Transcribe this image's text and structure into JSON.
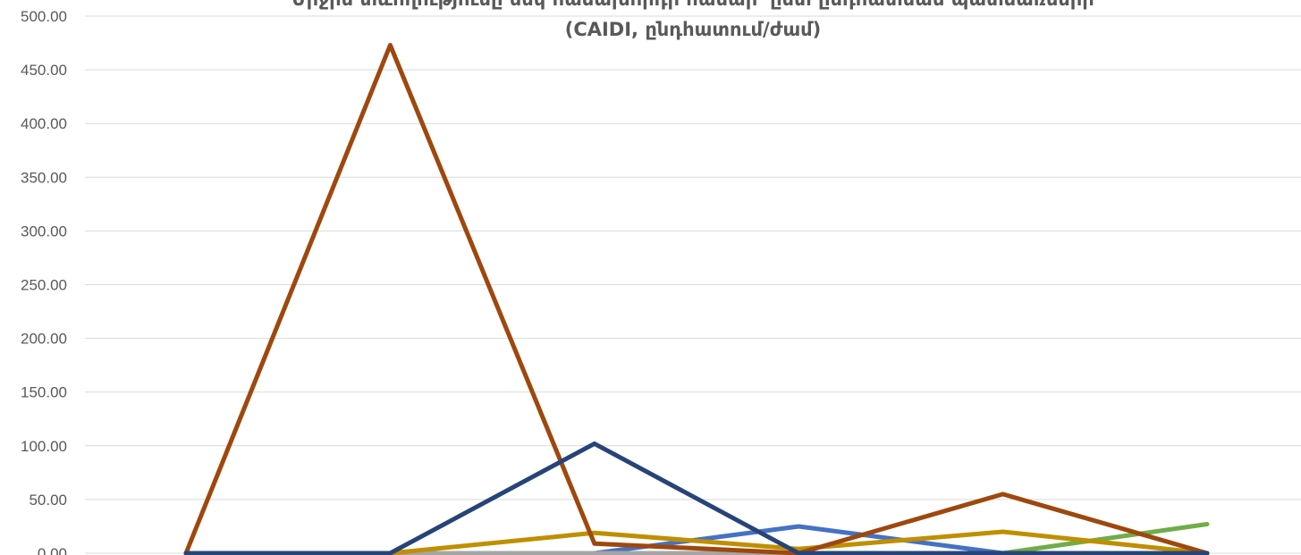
{
  "chart_data": {
    "type": "line",
    "title_lines": [
      "Միջին տևողությունը մեկ հաճախորդի համար՝ ըստ ընդհատման պատճառների",
      "(CAIDI, ընդհատում/ժամ)"
    ],
    "ylim": [
      0,
      500
    ],
    "yticks": [
      "0.00",
      "50.00",
      "100.00",
      "150.00",
      "200.00",
      "250.00",
      "300.00",
      "350.00",
      "400.00",
      "450.00",
      "500.00"
    ],
    "x": [
      1,
      2,
      3,
      4,
      5,
      6
    ],
    "grid": true,
    "series": [
      {
        "color": "#4472c4",
        "values": [
          0,
          0,
          0,
          25,
          0,
          0
        ]
      },
      {
        "color": "#70ad47",
        "values": [
          0,
          0,
          0,
          0,
          0,
          27
        ]
      },
      {
        "color": "#a5a5a5",
        "values": [
          0,
          0,
          0,
          0,
          0,
          0
        ]
      },
      {
        "color": "#bf8f00",
        "values": [
          0,
          0,
          19,
          4,
          20,
          0
        ]
      },
      {
        "color": "#9e480e",
        "values": [
          0,
          473,
          9,
          0,
          55,
          0
        ]
      },
      {
        "color": "#264478",
        "values": [
          0,
          0,
          102,
          0,
          0,
          0
        ]
      }
    ]
  }
}
